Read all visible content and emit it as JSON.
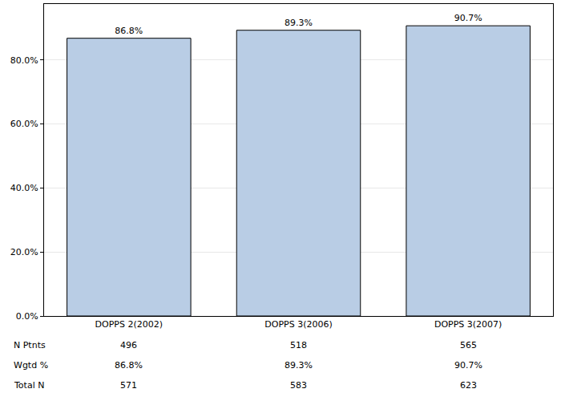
{
  "chart_data": {
    "type": "bar",
    "categories": [
      "DOPPS 2(2002)",
      "DOPPS 3(2006)",
      "DOPPS 3(2007)"
    ],
    "values": [
      86.8,
      89.3,
      90.7
    ],
    "value_labels": [
      "86.8%",
      "89.3%",
      "90.7%"
    ],
    "data_labels": true,
    "color": "#b9cde5",
    "ylim": [
      0,
      97.5
    ],
    "yticks": [
      {
        "value": 0,
        "label": "0.0%"
      },
      {
        "value": 20,
        "label": "20.0%"
      },
      {
        "value": 40,
        "label": "40.0%"
      },
      {
        "value": 60,
        "label": "60.0%"
      },
      {
        "value": 80,
        "label": "80.0%"
      }
    ],
    "grid": true,
    "table": {
      "rows": [
        {
          "label": "N Ptnts",
          "values": [
            496,
            518,
            565
          ]
        },
        {
          "label": "Wgtd %",
          "values": [
            86.8,
            89.3,
            90.7
          ],
          "value_labels": [
            "86.8%",
            "89.3%",
            "90.7%"
          ]
        },
        {
          "label": "Total N",
          "values": [
            571,
            583,
            623
          ]
        }
      ]
    }
  }
}
